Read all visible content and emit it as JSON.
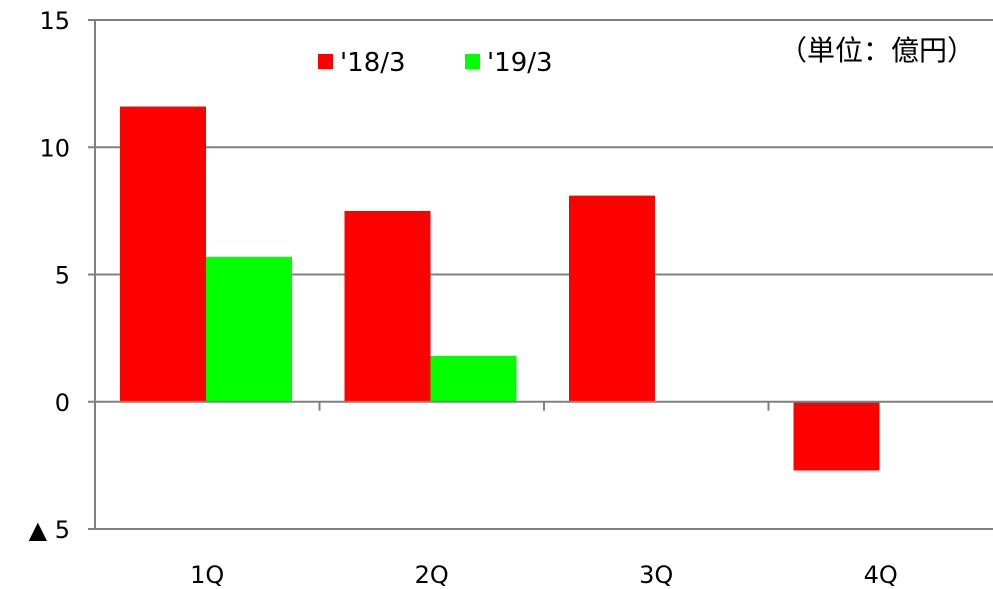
{
  "chart_data": {
    "type": "bar",
    "unit_note": "（単位：億円）",
    "categories": [
      "1Q",
      "2Q",
      "3Q",
      "4Q"
    ],
    "series": [
      {
        "name": "'18/3",
        "color": "#ff0000",
        "values": [
          11.6,
          7.5,
          8.1,
          -2.7
        ]
      },
      {
        "name": "'19/3",
        "color": "#00ff00",
        "values": [
          5.7,
          1.8,
          null,
          null
        ]
      }
    ],
    "ylim": [
      -5,
      15
    ],
    "yticks": [
      {
        "value": 15,
        "label": "15"
      },
      {
        "value": 10,
        "label": "10"
      },
      {
        "value": 5,
        "label": "5"
      },
      {
        "value": 0,
        "label": "0"
      },
      {
        "value": -5,
        "label": "▲ 5"
      }
    ],
    "grid": true,
    "legend_position": "top"
  }
}
